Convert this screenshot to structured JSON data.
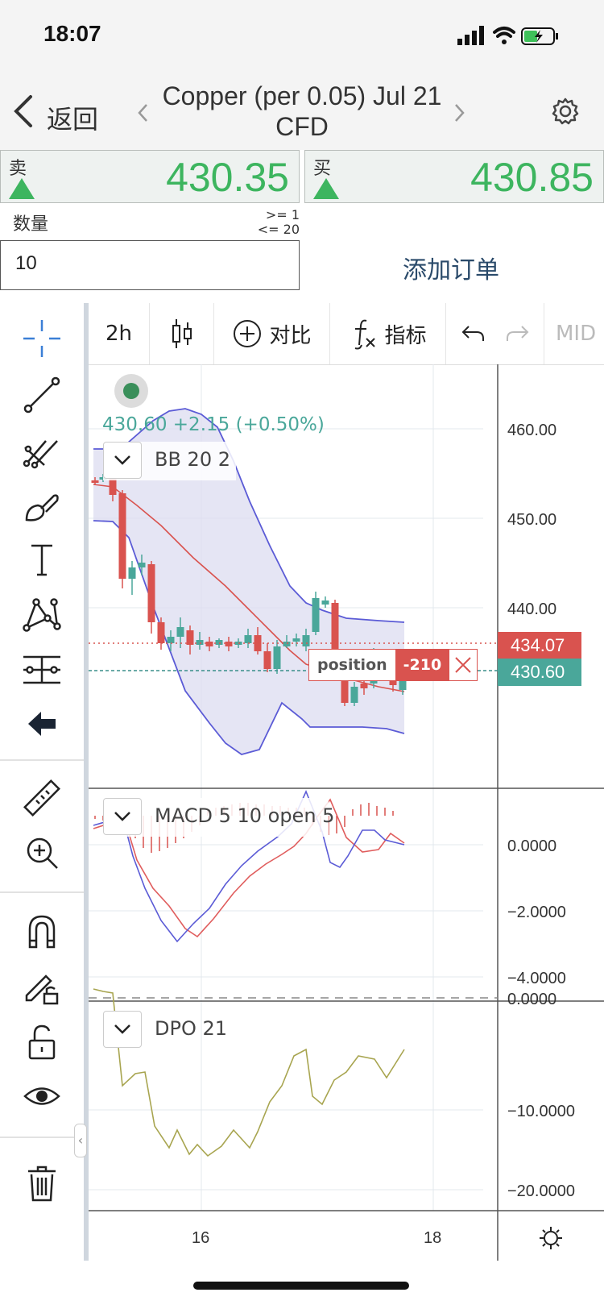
{
  "status": {
    "time": "18:07"
  },
  "nav": {
    "back_label": "返回",
    "title": "Copper (per 0.05) Jul 21 CFD"
  },
  "sell": {
    "label": "卖",
    "price": "430.35"
  },
  "buy": {
    "label": "买",
    "price": "430.85"
  },
  "quantity": {
    "label": "数量",
    "min": ">= 1",
    "max": "<= 20",
    "value": "10"
  },
  "add_order_label": "添加订单",
  "toolbar": {
    "interval": "2h",
    "compare": "对比",
    "indicators": "指标",
    "mid": "MID"
  },
  "chart": {
    "quote_line": "430.60  +2.15 (+0.50%)",
    "bb_label": "BB 20 2",
    "macd_label": "MACD 5 10 open 5",
    "dpo_label": "DPO 21",
    "price_axis": [
      "460.00",
      "450.00",
      "440.00"
    ],
    "macd_axis": [
      "0.0000",
      "−2.0000",
      "−4.0000"
    ],
    "dpo_axis": [
      "0.0000",
      "−10.0000",
      "−20.0000"
    ],
    "x_axis": [
      "16",
      "18"
    ],
    "position_label": "position",
    "position_qty": "-210",
    "position_price": "434.07",
    "last_price": "430.60"
  },
  "colors": {
    "green": "#3db55f",
    "red": "#d9534f",
    "teal": "#4aa79a",
    "band": "#5b5bd6",
    "dpo": "#a8a550"
  }
}
